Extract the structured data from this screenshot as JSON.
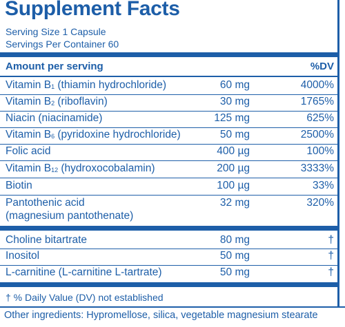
{
  "title": "Supplement Facts",
  "serving_size": "Serving Size 1 Capsule",
  "servings_per_container": "Servings Per Container 60",
  "header": {
    "amount": "Amount per serving",
    "dv": "%DV"
  },
  "rows": [
    {
      "name_pre": "Vitamin B",
      "sub": "1",
      "name_post": " (thiamin hydrochloride)",
      "amount": "60 mg",
      "dv": "4000%"
    },
    {
      "name_pre": "Vitamin B",
      "sub": "2",
      "name_post": " (riboflavin)",
      "amount": "30 mg",
      "dv": "1765%"
    },
    {
      "name_pre": "Niacin (niacinamide)",
      "sub": "",
      "name_post": "",
      "amount": "125 mg",
      "dv": "625%"
    },
    {
      "name_pre": "Vitamin B",
      "sub": "6",
      "name_post": " (pyridoxine hydrochloride)",
      "amount": "50 mg",
      "dv": "2500%"
    },
    {
      "name_pre": "Folic acid",
      "sub": "",
      "name_post": "",
      "amount": "400 µg",
      "dv": "100%"
    },
    {
      "name_pre": "Vitamin B",
      "sub": "12",
      "name_post": " (hydroxocobalamin)",
      "amount": "200 µg",
      "dv": "3333%"
    },
    {
      "name_pre": "Biotin",
      "sub": "",
      "name_post": "",
      "amount": "100 µg",
      "dv": "33%"
    },
    {
      "name_pre": "Pantothenic acid",
      "sub": "",
      "name_post": "",
      "name_line2": "(magnesium pantothenate)",
      "amount": "32 mg",
      "dv": "320%"
    }
  ],
  "rows2": [
    {
      "name": "Choline bitartrate",
      "amount": "80 mg",
      "dv": "†"
    },
    {
      "name": "Inositol",
      "amount": "50 mg",
      "dv": "†"
    },
    {
      "name": "L-carnitine (L-carnitine L-tartrate)",
      "amount": "50 mg",
      "dv": "†"
    }
  ],
  "footnote": "† % Daily Value (DV) not established",
  "other_ingredients": "Other ingredients: Hypromellose, silica, vegetable magnesium stearate",
  "colors": {
    "ink": "#1d5ea8",
    "background": "#ffffff"
  }
}
